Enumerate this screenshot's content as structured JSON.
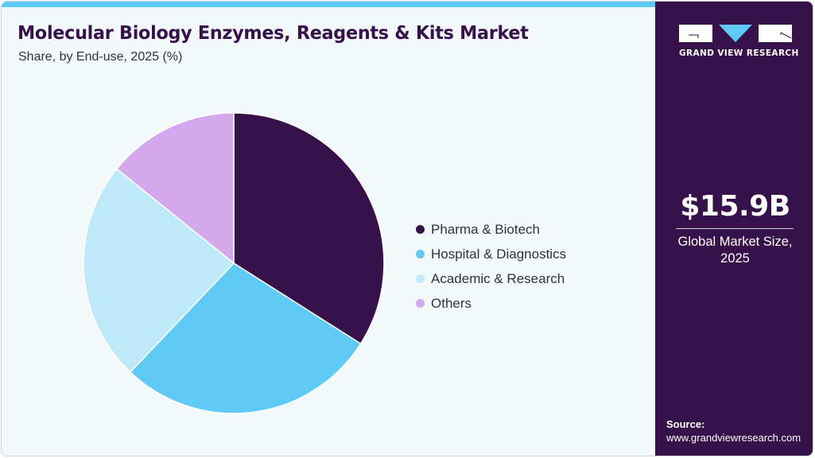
{
  "header": {
    "title": "Molecular Biology Enzymes, Reagents & Kits Market",
    "subtitle": "Share, by End-use, 2025 (%)"
  },
  "colors": {
    "accent_bar": "#5ecaf5",
    "sidebar_bg": "#37114a",
    "title": "#37114a",
    "background": "#f3f8fb"
  },
  "sidebar": {
    "logo_text": "GRAND VIEW RESEARCH",
    "market_value": "$15.9B",
    "market_label_line1": "Global Market Size,",
    "market_label_line2": "2025",
    "source_label": "Source:",
    "source_url": "www.grandviewresearch.com"
  },
  "chart_data": {
    "type": "pie",
    "title": "Molecular Biology Enzymes, Reagents & Kits Market",
    "subtitle": "Share, by End-use, 2025 (%)",
    "categories": [
      "Pharma & Biotech",
      "Hospital & Diagnostics",
      "Academic & Research",
      "Others"
    ],
    "values": [
      34.0,
      28.1,
      23.7,
      14.2
    ],
    "colors": [
      "#37114a",
      "#5ecaf5",
      "#bde9f8",
      "#d4a8ec"
    ],
    "start_angle": "12 o'clock, clockwise",
    "legend_position": "right"
  }
}
